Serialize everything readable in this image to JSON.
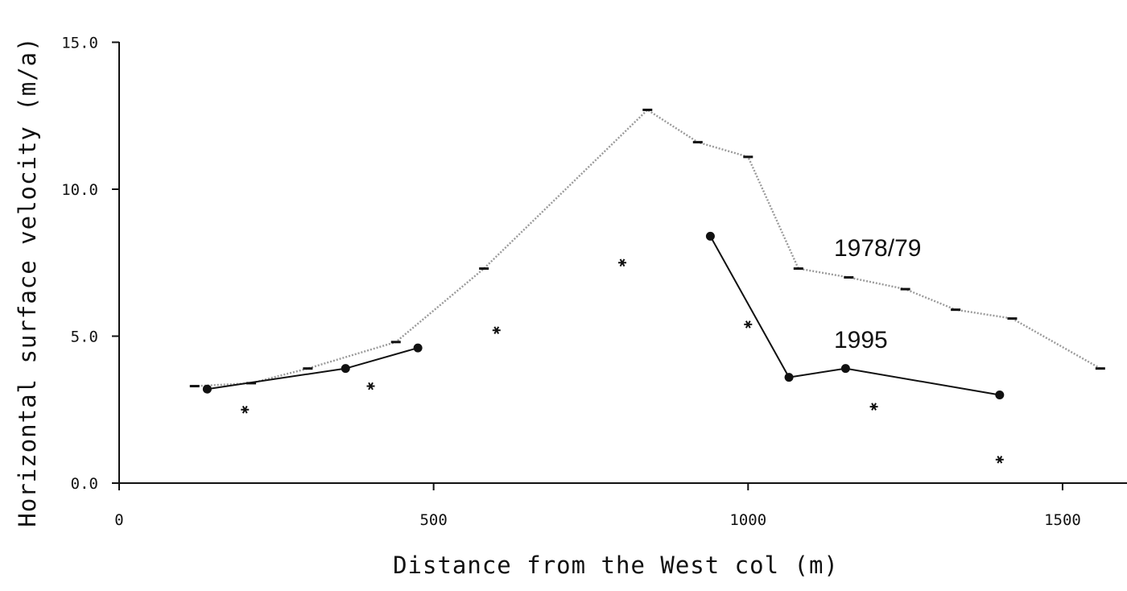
{
  "chart_data": {
    "type": "line",
    "title": "",
    "xlabel": "Distance from the West col (m)",
    "ylabel": "Horizontal surface velocity (m/a)",
    "xlim": [
      0,
      1600
    ],
    "ylim": [
      0,
      15
    ],
    "xticks": [
      0,
      500,
      1000,
      1500
    ],
    "xtick_labels": [
      "0",
      "500",
      "1000",
      "1500"
    ],
    "yticks": [
      0,
      5,
      10,
      15
    ],
    "ytick_labels": [
      "0.0",
      "5.0",
      "10.0",
      "15.0"
    ],
    "grid": false,
    "legend": "none",
    "series": [
      {
        "name": "1978/79",
        "style": "dotted-line-dash-markers",
        "color": "#9a9a9a",
        "x": [
          120,
          210,
          300,
          440,
          580,
          840,
          920,
          1000,
          1080,
          1160,
          1250,
          1330,
          1420,
          1560
        ],
        "y": [
          3.3,
          3.4,
          3.9,
          4.8,
          7.3,
          12.7,
          11.6,
          11.1,
          7.3,
          7.0,
          6.6,
          5.9,
          5.6,
          3.9
        ]
      },
      {
        "name": "1995",
        "style": "solid-line-dot-markers",
        "color": "#111111",
        "segments": [
          {
            "x": [
              140,
              360,
              475
            ],
            "y": [
              3.2,
              3.9,
              4.6
            ]
          },
          {
            "x": [
              940,
              1065,
              1155,
              1400
            ],
            "y": [
              8.4,
              3.6,
              3.9,
              3.0
            ]
          }
        ]
      },
      {
        "name": "",
        "style": "star-markers",
        "color": "#111111",
        "x": [
          200,
          400,
          600,
          800,
          1000,
          1200,
          1400
        ],
        "y": [
          2.5,
          3.3,
          5.2,
          7.5,
          5.4,
          2.6,
          0.8
        ]
      }
    ]
  }
}
